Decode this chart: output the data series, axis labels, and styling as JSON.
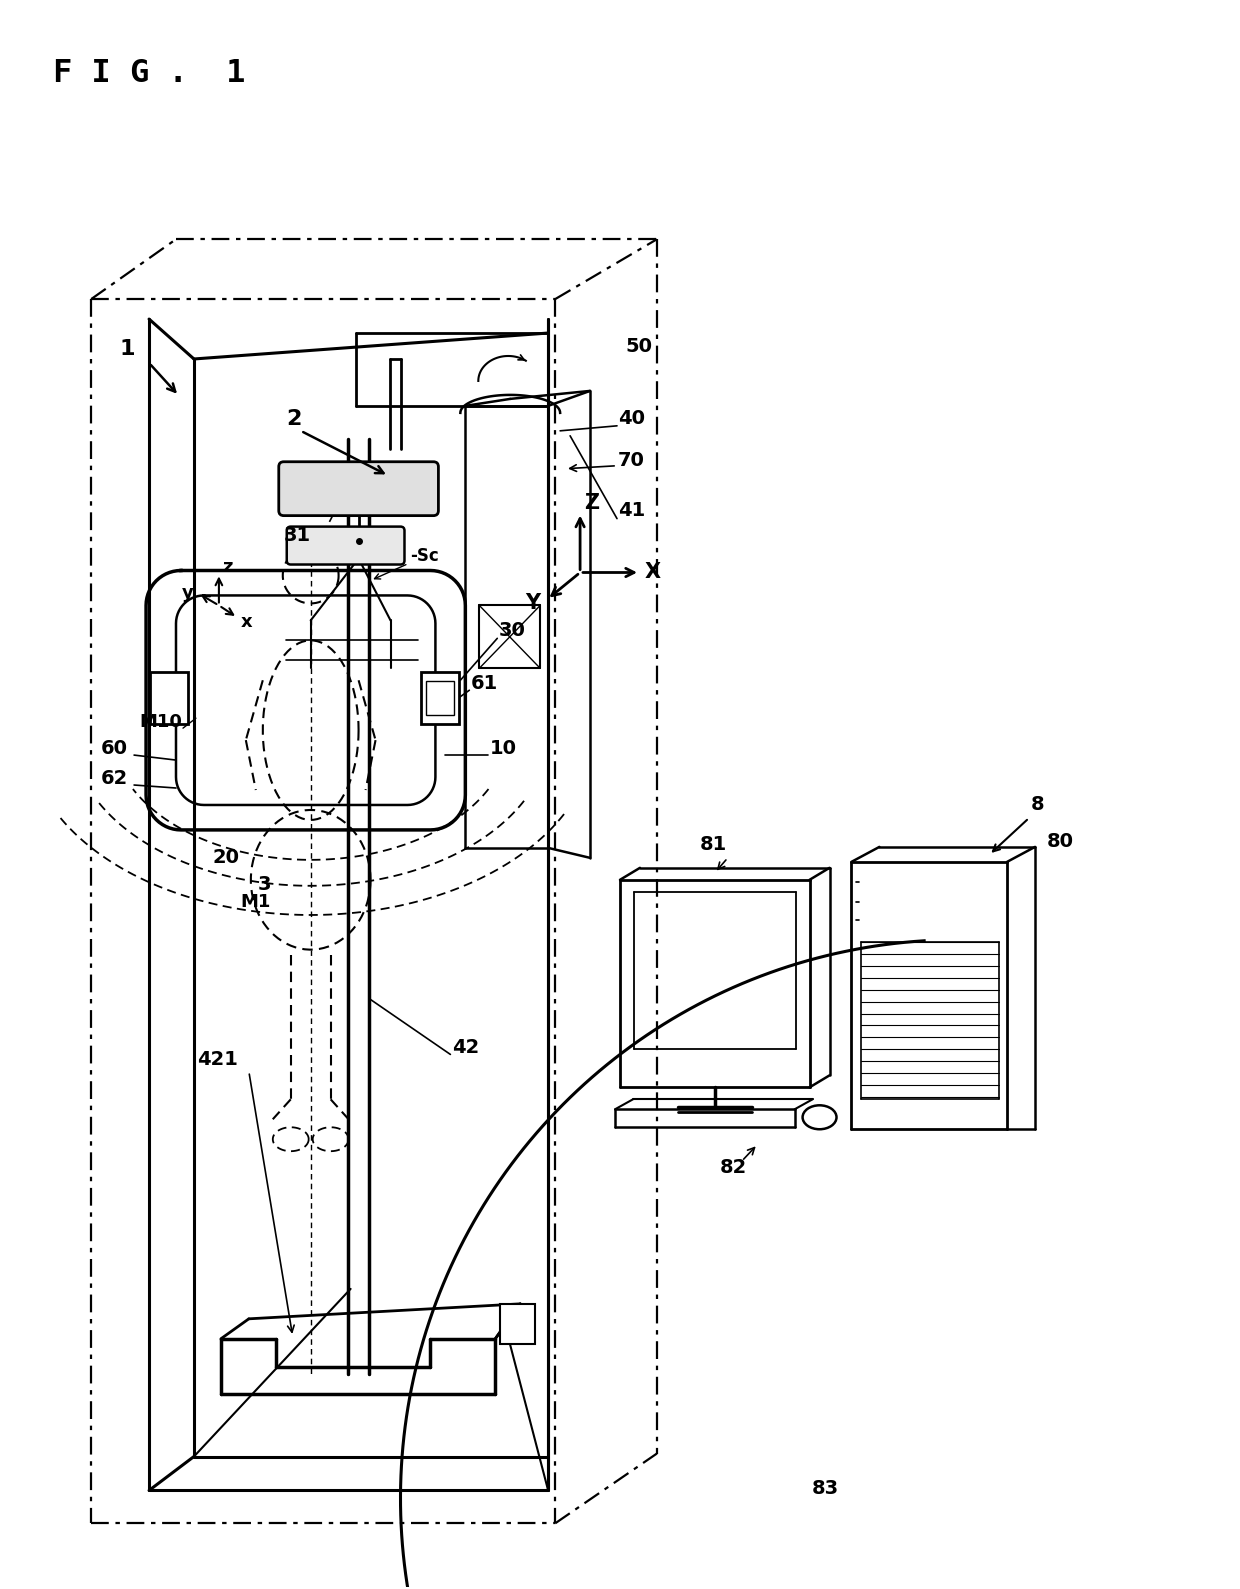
{
  "bg_color": "#ffffff",
  "line_color": "#000000",
  "fig_width": 12.4,
  "fig_height": 15.89,
  "labels": {
    "fig_title": "F I G .  1",
    "label_1": "1",
    "label_2": "2",
    "label_3": "3",
    "label_8": "8",
    "label_10": "10",
    "label_20": "20",
    "label_30": "30",
    "label_31": "31",
    "label_40": "40",
    "label_41": "41",
    "label_42": "42",
    "label_421": "421",
    "label_50": "50",
    "label_60": "60",
    "label_61": "61",
    "label_62": "62",
    "label_70": "70",
    "label_80": "80",
    "label_81": "81",
    "label_82": "82",
    "label_83": "83",
    "label_M1": "M1",
    "label_M10": "M10",
    "label_Sc": "-Sc",
    "label_X": "X",
    "label_Y": "Y",
    "label_Z": "Z",
    "label_x": "x",
    "label_y": "y",
    "label_z": "z"
  }
}
